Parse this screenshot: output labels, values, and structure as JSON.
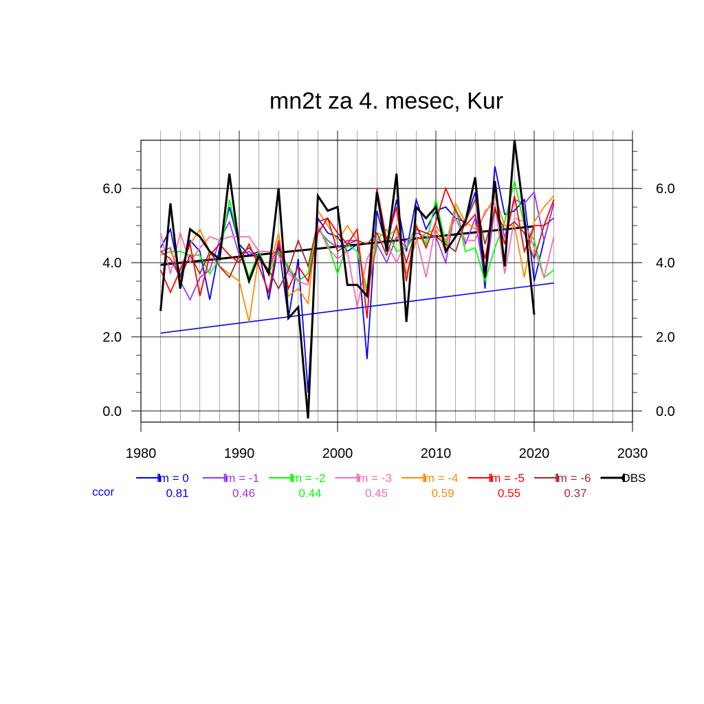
{
  "chart_data": {
    "type": "line",
    "title": "mn2t za 4. mesec, Kur",
    "xlabel": "",
    "ylabel": "",
    "xlim": [
      1980,
      2030
    ],
    "ylim": [
      -0.3,
      7.3
    ],
    "x_ticks": [
      "1980",
      "1990",
      "2000",
      "2010",
      "2020",
      "2030"
    ],
    "y_ticks": [
      "0.0",
      "2.0",
      "4.0",
      "6.0"
    ],
    "grid": true,
    "ccor_label": "ccor",
    "series": [
      {
        "name": "lm = 0",
        "color": "#0000ff",
        "ccor": "0.81",
        "x": [
          1982,
          1983,
          1984,
          1985,
          1986,
          1987,
          1988,
          1989,
          1990,
          1991,
          1992,
          1993,
          1994,
          1995,
          1996,
          1997,
          1998,
          1999,
          2000,
          2001,
          2002,
          2003,
          2004,
          2005,
          2006,
          2007,
          2008,
          2009,
          2010,
          2011,
          2012,
          2013,
          2014,
          2015,
          2016,
          2017,
          2018,
          2019,
          2020,
          2021,
          2022
        ],
        "y": [
          4.4,
          4.9,
          3.6,
          4.6,
          4.3,
          3.0,
          4.4,
          5.5,
          4.5,
          4.2,
          4.3,
          3.0,
          4.5,
          2.5,
          4.1,
          0.5,
          5.2,
          4.8,
          4.7,
          4.3,
          4.5,
          1.4,
          5.4,
          4.4,
          5.7,
          4.3,
          5.7,
          4.9,
          5.4,
          5.5,
          5.2,
          5.1,
          5.9,
          3.3,
          6.6,
          5.3,
          5.4,
          5.7,
          3.5,
          4.6,
          5.6
        ]
      },
      {
        "name": "lm = -1",
        "color": "#9933ff",
        "ccor": "0.46",
        "x": [
          1982,
          1983,
          1984,
          1985,
          1986,
          1987,
          1988,
          1989,
          1990,
          1991,
          1992,
          1993,
          1994,
          1995,
          1996,
          1997,
          1998,
          1999,
          2000,
          2001,
          2002,
          2003,
          2004,
          2005,
          2006,
          2007,
          2008,
          2009,
          2010,
          2011,
          2012,
          2013,
          2014,
          2015,
          2016,
          2017,
          2018,
          2019,
          2020,
          2021,
          2022
        ],
        "y": [
          4.3,
          4.4,
          3.5,
          3.0,
          3.6,
          3.8,
          4.6,
          5.1,
          4.2,
          4.3,
          4.1,
          3.8,
          4.5,
          3.8,
          3.5,
          3.7,
          4.9,
          4.6,
          4.4,
          4.6,
          4.6,
          3.1,
          4.5,
          4.0,
          4.7,
          4.4,
          4.8,
          4.7,
          4.7,
          4.0,
          5.5,
          4.5,
          5.2,
          3.5,
          5.5,
          4.7,
          5.7,
          5.6,
          5.9,
          4.6,
          5.6
        ]
      },
      {
        "name": "lm = -2",
        "color": "#00ff00",
        "ccor": "0.44",
        "x": [
          1982,
          1983,
          1984,
          1985,
          1986,
          1987,
          1988,
          1989,
          1990,
          1991,
          1992,
          1993,
          1994,
          1995,
          1996,
          1997,
          1998,
          1999,
          2000,
          2001,
          2002,
          2003,
          2004,
          2005,
          2006,
          2007,
          2008,
          2009,
          2010,
          2011,
          2012,
          2013,
          2014,
          2015,
          2016,
          2017,
          2018,
          2019,
          2020,
          2021,
          2022
        ],
        "y": [
          4.2,
          4.3,
          4.3,
          4.2,
          4.2,
          3.7,
          4.1,
          5.7,
          4.5,
          3.6,
          4.3,
          3.7,
          4.3,
          3.9,
          3.5,
          3.7,
          5.0,
          4.5,
          3.7,
          4.5,
          4.3,
          3.3,
          4.6,
          4.9,
          4.3,
          4.4,
          5.0,
          4.5,
          5.7,
          4.5,
          5.5,
          4.3,
          4.4,
          3.5,
          4.4,
          5.1,
          6.2,
          5.0,
          4.6,
          3.6,
          3.8
        ]
      },
      {
        "name": "lm = -3",
        "color": "#ff69b4",
        "ccor": "0.45",
        "x": [
          1982,
          1983,
          1984,
          1985,
          1986,
          1987,
          1988,
          1989,
          1990,
          1991,
          1992,
          1993,
          1994,
          1995,
          1996,
          1997,
          1998,
          1999,
          2000,
          2001,
          2002,
          2003,
          2004,
          2005,
          2006,
          2007,
          2008,
          2009,
          2010,
          2011,
          2012,
          2013,
          2014,
          2015,
          2016,
          2017,
          2018,
          2019,
          2020,
          2021,
          2022
        ],
        "y": [
          4.8,
          3.7,
          4.8,
          4.0,
          4.4,
          4.7,
          4.6,
          4.7,
          4.7,
          4.7,
          4.3,
          4.3,
          4.2,
          3.7,
          3.5,
          3.4,
          5.0,
          4.4,
          4.1,
          4.3,
          2.8,
          4.1,
          4.6,
          4.5,
          4.0,
          4.6,
          4.7,
          3.6,
          5.0,
          4.6,
          5.2,
          4.6,
          4.6,
          5.4,
          5.6,
          3.7,
          5.2,
          5.1,
          4.4,
          3.6,
          4.7
        ]
      },
      {
        "name": "lm = -4",
        "color": "#ff8c00",
        "ccor": "0.59",
        "x": [
          1982,
          1983,
          1984,
          1985,
          1986,
          1987,
          1988,
          1989,
          1990,
          1991,
          1992,
          1993,
          1994,
          1995,
          1996,
          1997,
          1998,
          1999,
          2000,
          2001,
          2002,
          2003,
          2004,
          2005,
          2006,
          2007,
          2008,
          2009,
          2010,
          2011,
          2012,
          2013,
          2014,
          2015,
          2016,
          2017,
          2018,
          2019,
          2020,
          2021,
          2022
        ],
        "y": [
          4.2,
          4.3,
          3.8,
          4.5,
          4.9,
          4.3,
          3.9,
          3.7,
          3.5,
          2.4,
          4.2,
          3.8,
          4.8,
          3.1,
          3.3,
          2.9,
          5.4,
          5.0,
          4.6,
          5.0,
          4.6,
          3.1,
          4.8,
          4.7,
          4.9,
          3.7,
          4.6,
          4.8,
          4.9,
          4.3,
          5.6,
          5.1,
          4.9,
          5.3,
          5.8,
          5.0,
          5.0,
          3.6,
          5.1,
          5.5,
          5.8
        ]
      },
      {
        "name": "lm = -5",
        "color": "#ff0000",
        "ccor": "0.55",
        "x": [
          1982,
          1983,
          1984,
          1985,
          1986,
          1987,
          1988,
          1989,
          1990,
          1991,
          1992,
          1993,
          1994,
          1995,
          1996,
          1997,
          1998,
          1999,
          2000,
          2001,
          2002,
          2003,
          2004,
          2005,
          2006,
          2007,
          2008,
          2009,
          2010,
          2011,
          2012,
          2013,
          2014,
          2015,
          2016,
          2017,
          2018,
          2019,
          2020,
          2021,
          2022
        ],
        "y": [
          3.8,
          3.2,
          3.8,
          4.5,
          3.1,
          4.2,
          4.5,
          4.2,
          4.0,
          4.5,
          3.9,
          3.2,
          4.6,
          3.3,
          3.9,
          3.5,
          4.8,
          5.2,
          4.8,
          4.5,
          4.9,
          2.5,
          6.0,
          4.6,
          5.5,
          3.5,
          5.0,
          4.4,
          5.1,
          6.0,
          5.4,
          5.0,
          5.3,
          4.1,
          5.5,
          4.5,
          5.8,
          4.3,
          5.0,
          5.0,
          5.7
        ]
      },
      {
        "name": "lm = -6",
        "color": "#a52a2a",
        "ccor": "0.37",
        "x": [
          1982,
          1983,
          1984,
          1985,
          1986,
          1987,
          1988,
          1989,
          1990,
          1991,
          1992,
          1993,
          1994,
          1995,
          1996,
          1997,
          1998,
          1999,
          2000,
          2001,
          2002,
          2003,
          2004,
          2005,
          2006,
          2007,
          2008,
          2009,
          2010,
          2011,
          2012,
          2013,
          2014,
          2015,
          2016,
          2017,
          2018,
          2019,
          2020,
          2021,
          2022
        ],
        "y": [
          4.3,
          4.1,
          3.6,
          4.2,
          3.7,
          4.3,
          3.9,
          3.6,
          4.2,
          4.4,
          4.1,
          3.8,
          3.3,
          3.8,
          4.6,
          3.9,
          5.1,
          5.2,
          4.3,
          4.5,
          4.6,
          4.5,
          4.8,
          4.2,
          5.0,
          4.0,
          4.9,
          4.8,
          4.7,
          4.5,
          4.3,
          5.1,
          5.7,
          4.5,
          5.4,
          4.9,
          5.1,
          4.8,
          4.1,
          5.0,
          5.2
        ]
      },
      {
        "name": "OBS",
        "color": "#000000",
        "ccor": "",
        "x": [
          1982,
          1983,
          1984,
          1985,
          1986,
          1987,
          1988,
          1989,
          1990,
          1991,
          1992,
          1993,
          1994,
          1995,
          1996,
          1997,
          1998,
          1999,
          2000,
          2001,
          2002,
          2003,
          2004,
          2005,
          2006,
          2007,
          2008,
          2009,
          2010,
          2011,
          2012,
          2013,
          2014,
          2015,
          2016,
          2017,
          2018,
          2019,
          2020
        ],
        "y": [
          2.7,
          5.6,
          3.3,
          4.9,
          4.7,
          4.3,
          4.1,
          6.4,
          4.4,
          3.5,
          4.2,
          3.7,
          6.0,
          2.5,
          2.8,
          -0.2,
          5.8,
          5.4,
          5.5,
          3.4,
          3.4,
          3.1,
          5.9,
          4.3,
          6.4,
          2.4,
          5.5,
          5.2,
          5.5,
          4.3,
          4.7,
          5.1,
          6.3,
          3.6,
          6.2,
          3.9,
          7.3,
          5.2,
          2.6
        ]
      }
    ],
    "trend_lines": [
      {
        "series": "lm = 0",
        "color": "#0000ff",
        "x": [
          1982,
          2022
        ],
        "y": [
          2.1,
          3.45
        ]
      },
      {
        "series": "OBS",
        "color": "#000000",
        "x": [
          1982,
          2020
        ],
        "y": [
          3.94,
          4.98
        ]
      }
    ]
  }
}
